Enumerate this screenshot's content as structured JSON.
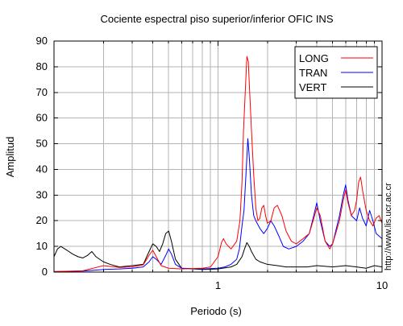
{
  "chart_data": {
    "type": "line",
    "title": "Cociente espectral piso superior/inferior  OFIC INS",
    "xlabel": "Periodo (s)",
    "ylabel": "Amplitud",
    "xscale": "log",
    "xlim": [
      0.1,
      10
    ],
    "ylim": [
      0,
      90
    ],
    "x_ticks": [
      1,
      10
    ],
    "x_tick_labels": [
      "1",
      "10"
    ],
    "y_ticks": [
      0,
      10,
      20,
      30,
      40,
      50,
      60,
      70,
      80,
      90
    ],
    "y_tick_labels": [
      "0",
      "10",
      "20",
      "30",
      "40",
      "50",
      "60",
      "70",
      "80",
      "90"
    ],
    "grid": true,
    "legend_position": "top-right",
    "watermark": "http://www.lis.ucr.ac.cr",
    "series": [
      {
        "name": "LONG",
        "color": "#ff0000",
        "points": [
          [
            0.1,
            0.2
          ],
          [
            0.15,
            0.5
          ],
          [
            0.2,
            2.5
          ],
          [
            0.25,
            1.8
          ],
          [
            0.3,
            2.0
          ],
          [
            0.35,
            2.8
          ],
          [
            0.38,
            6.5
          ],
          [
            0.4,
            8.5
          ],
          [
            0.42,
            6.0
          ],
          [
            0.45,
            2.5
          ],
          [
            0.5,
            1.5
          ],
          [
            0.6,
            1.2
          ],
          [
            0.8,
            1.5
          ],
          [
            0.9,
            2.0
          ],
          [
            1.0,
            6.0
          ],
          [
            1.05,
            11.5
          ],
          [
            1.08,
            13.0
          ],
          [
            1.12,
            11.0
          ],
          [
            1.2,
            9.0
          ],
          [
            1.3,
            12.0
          ],
          [
            1.36,
            20.0
          ],
          [
            1.4,
            35.0
          ],
          [
            1.43,
            55.0
          ],
          [
            1.47,
            72.0
          ],
          [
            1.5,
            84.0
          ],
          [
            1.53,
            82.0
          ],
          [
            1.56,
            70.0
          ],
          [
            1.6,
            55.0
          ],
          [
            1.65,
            38.0
          ],
          [
            1.7,
            25.0
          ],
          [
            1.75,
            20.0
          ],
          [
            1.8,
            21.0
          ],
          [
            1.85,
            25.0
          ],
          [
            1.9,
            26.0
          ],
          [
            1.95,
            22.0
          ],
          [
            2.0,
            19.0
          ],
          [
            2.1,
            20.0
          ],
          [
            2.2,
            25.0
          ],
          [
            2.3,
            26.0
          ],
          [
            2.45,
            22.0
          ],
          [
            2.6,
            16.0
          ],
          [
            2.8,
            12.0
          ],
          [
            3.0,
            11.0
          ],
          [
            3.3,
            13.0
          ],
          [
            3.6,
            15.0
          ],
          [
            3.8,
            20.0
          ],
          [
            4.0,
            25.0
          ],
          [
            4.2,
            22.0
          ],
          [
            4.5,
            12.0
          ],
          [
            4.8,
            9.0
          ],
          [
            5.0,
            11.0
          ],
          [
            5.5,
            20.0
          ],
          [
            5.8,
            28.0
          ],
          [
            6.0,
            32.0
          ],
          [
            6.2,
            27.0
          ],
          [
            6.5,
            22.0
          ],
          [
            6.8,
            24.0
          ],
          [
            7.0,
            28.0
          ],
          [
            7.2,
            35.0
          ],
          [
            7.4,
            37.0
          ],
          [
            7.6,
            32.0
          ],
          [
            8.0,
            24.0
          ],
          [
            8.4,
            20.0
          ],
          [
            8.8,
            18.0
          ],
          [
            9.2,
            21.0
          ],
          [
            9.6,
            22.0
          ],
          [
            10.0,
            19.0
          ]
        ]
      },
      {
        "name": "TRAN",
        "color": "#0000ff",
        "points": [
          [
            0.1,
            0.2
          ],
          [
            0.15,
            0.4
          ],
          [
            0.2,
            1.0
          ],
          [
            0.25,
            1.2
          ],
          [
            0.3,
            1.5
          ],
          [
            0.35,
            2.0
          ],
          [
            0.38,
            4.0
          ],
          [
            0.4,
            6.0
          ],
          [
            0.42,
            5.0
          ],
          [
            0.45,
            3.0
          ],
          [
            0.48,
            6.5
          ],
          [
            0.5,
            9.0
          ],
          [
            0.52,
            7.0
          ],
          [
            0.55,
            3.0
          ],
          [
            0.6,
            1.5
          ],
          [
            0.8,
            1.2
          ],
          [
            1.0,
            1.5
          ],
          [
            1.1,
            2.0
          ],
          [
            1.2,
            3.0
          ],
          [
            1.3,
            5.0
          ],
          [
            1.35,
            9.0
          ],
          [
            1.4,
            18.0
          ],
          [
            1.44,
            24.0
          ],
          [
            1.48,
            38.0
          ],
          [
            1.52,
            52.0
          ],
          [
            1.55,
            45.0
          ],
          [
            1.6,
            30.0
          ],
          [
            1.65,
            22.0
          ],
          [
            1.7,
            20.0
          ],
          [
            1.8,
            17.0
          ],
          [
            1.9,
            15.0
          ],
          [
            2.0,
            17.0
          ],
          [
            2.1,
            20.0
          ],
          [
            2.2,
            18.0
          ],
          [
            2.35,
            14.0
          ],
          [
            2.5,
            10.0
          ],
          [
            2.7,
            9.0
          ],
          [
            3.0,
            10.0
          ],
          [
            3.3,
            12.0
          ],
          [
            3.6,
            15.0
          ],
          [
            3.8,
            21.0
          ],
          [
            4.0,
            27.0
          ],
          [
            4.2,
            20.0
          ],
          [
            4.5,
            12.0
          ],
          [
            4.8,
            10.0
          ],
          [
            5.0,
            11.0
          ],
          [
            5.5,
            22.0
          ],
          [
            5.8,
            30.0
          ],
          [
            6.0,
            34.0
          ],
          [
            6.2,
            28.0
          ],
          [
            6.5,
            22.0
          ],
          [
            7.0,
            20.0
          ],
          [
            7.3,
            25.0
          ],
          [
            7.6,
            21.0
          ],
          [
            8.0,
            18.0
          ],
          [
            8.4,
            24.0
          ],
          [
            8.8,
            20.0
          ],
          [
            9.2,
            15.0
          ],
          [
            9.6,
            14.0
          ],
          [
            10.0,
            13.0
          ]
        ]
      },
      {
        "name": "VERT",
        "color": "#000000",
        "points": [
          [
            0.1,
            6.0
          ],
          [
            0.105,
            9.0
          ],
          [
            0.11,
            10.0
          ],
          [
            0.12,
            8.5
          ],
          [
            0.13,
            7.0
          ],
          [
            0.14,
            6.0
          ],
          [
            0.15,
            5.5
          ],
          [
            0.16,
            6.5
          ],
          [
            0.17,
            8.0
          ],
          [
            0.18,
            6.0
          ],
          [
            0.2,
            4.0
          ],
          [
            0.22,
            3.0
          ],
          [
            0.25,
            2.0
          ],
          [
            0.3,
            2.5
          ],
          [
            0.35,
            3.0
          ],
          [
            0.38,
            8.0
          ],
          [
            0.4,
            11.0
          ],
          [
            0.42,
            10.0
          ],
          [
            0.44,
            8.0
          ],
          [
            0.46,
            11.0
          ],
          [
            0.48,
            15.0
          ],
          [
            0.5,
            16.0
          ],
          [
            0.52,
            12.0
          ],
          [
            0.55,
            5.0
          ],
          [
            0.6,
            1.5
          ],
          [
            0.8,
            1.0
          ],
          [
            1.0,
            1.2
          ],
          [
            1.2,
            2.0
          ],
          [
            1.3,
            3.0
          ],
          [
            1.4,
            6.0
          ],
          [
            1.45,
            9.0
          ],
          [
            1.5,
            11.5
          ],
          [
            1.55,
            10.0
          ],
          [
            1.6,
            8.0
          ],
          [
            1.7,
            5.0
          ],
          [
            1.8,
            4.0
          ],
          [
            2.0,
            3.0
          ],
          [
            2.3,
            2.5
          ],
          [
            2.6,
            2.0
          ],
          [
            3.0,
            2.0
          ],
          [
            3.5,
            2.0
          ],
          [
            4.0,
            2.5
          ],
          [
            5.0,
            2.0
          ],
          [
            6.0,
            2.5
          ],
          [
            7.0,
            2.0
          ],
          [
            8.0,
            1.5
          ],
          [
            9.0,
            2.5
          ],
          [
            10.0,
            2.0
          ]
        ]
      }
    ]
  }
}
